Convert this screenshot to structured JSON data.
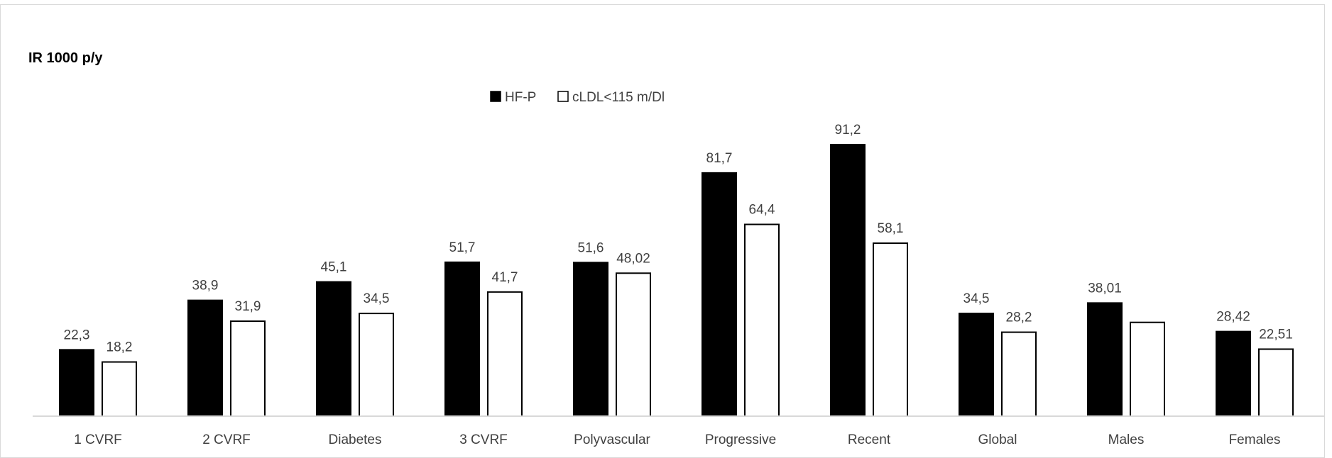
{
  "chart_data": {
    "type": "bar",
    "ylabel": "IR 1000 p/y",
    "categories": [
      "1 CVRF",
      "2 CVRF",
      "Diabetes",
      "3 CVRF",
      "Polyvascular",
      "Progressive",
      "Recent",
      "Global",
      "Males",
      "Females"
    ],
    "series": [
      {
        "name": "HF-P",
        "color": "#000000",
        "values": [
          22.3,
          38.9,
          45.1,
          51.7,
          51.6,
          81.7,
          91.2,
          34.5,
          38.01,
          28.42
        ],
        "labels": [
          "22,3",
          "38,9",
          "45,1",
          "51,7",
          "51,6",
          "81,7",
          "91,2",
          "34,5",
          "38,01",
          "28,42"
        ]
      },
      {
        "name": "cLDL<115 m/Dl",
        "color": "#ffffff",
        "values": [
          18.2,
          31.9,
          34.5,
          41.7,
          48.02,
          64.4,
          58.1,
          28.2,
          31.5,
          22.51
        ],
        "labels": [
          "18,2",
          "31,9",
          "34,5",
          "41,7",
          "48,02",
          "64,4",
          "58,1",
          "28,2",
          "",
          "22,51"
        ]
      }
    ],
    "ylim": [
      0,
      100
    ],
    "grid": false,
    "legend": "top-center"
  }
}
